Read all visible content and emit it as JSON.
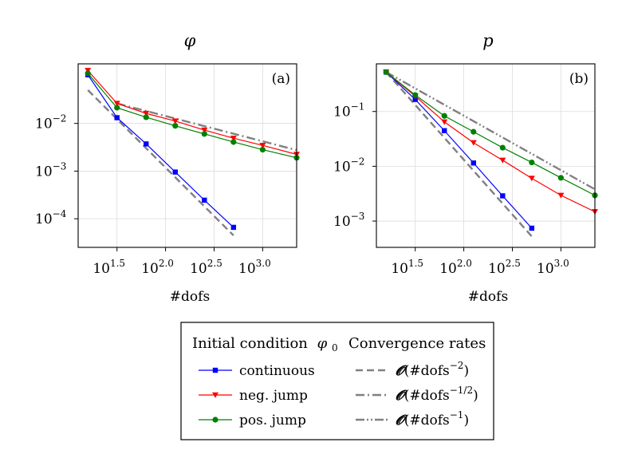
{
  "chart_data": [
    {
      "type": "line",
      "title": "φ",
      "panel_label": "(a)",
      "xlabel": "#dofs",
      "ylabel": "",
      "xscale": "log10",
      "yscale": "log10",
      "xlim_log10": [
        1.1,
        3.35
      ],
      "ylim_log10": [
        -4.6,
        -0.75
      ],
      "xticks": [
        {
          "value": 1.5,
          "base": "10",
          "exp": "1.5"
        },
        {
          "value": 2.0,
          "base": "10",
          "exp": "2.0"
        },
        {
          "value": 2.5,
          "base": "10",
          "exp": "2.5"
        },
        {
          "value": 3.0,
          "base": "10",
          "exp": "3.0"
        }
      ],
      "yticks": [
        {
          "value": -2,
          "base": "10",
          "exp": "−2"
        },
        {
          "value": -3,
          "base": "10",
          "exp": "−3"
        },
        {
          "value": -4,
          "base": "10",
          "exp": "−4"
        }
      ],
      "grid": true,
      "series": [
        {
          "name": "continuous",
          "color": "#0000ff",
          "marker": "square",
          "x": [
            1.2,
            1.5,
            1.8,
            2.1,
            2.4,
            2.7
          ],
          "y": [
            -0.98,
            -1.88,
            -2.43,
            -3.02,
            -3.61,
            -4.18
          ]
        },
        {
          "name": "neg. jump",
          "color": "#ff0000",
          "marker": "triangle-down",
          "x": [
            1.2,
            1.5,
            1.8,
            2.1,
            2.4,
            2.7,
            3.0,
            3.35
          ],
          "y": [
            -0.89,
            -1.58,
            -1.79,
            -1.95,
            -2.14,
            -2.31,
            -2.46,
            -2.65
          ]
        },
        {
          "name": "pos. jump",
          "color": "#008000",
          "marker": "circle",
          "x": [
            1.2,
            1.5,
            1.8,
            2.1,
            2.4,
            2.7,
            3.0,
            3.35
          ],
          "y": [
            -0.95,
            -1.67,
            -1.87,
            -2.05,
            -2.22,
            -2.39,
            -2.55,
            -2.72
          ]
        }
      ],
      "reference_lines": [
        {
          "name": "O(#dofs^-2)",
          "style": "dash",
          "x": [
            1.2,
            2.7
          ],
          "y": [
            -1.3,
            -4.35
          ]
        },
        {
          "name": "O(#dofs^-1/2)",
          "style": "dashdot",
          "x": [
            1.5,
            3.35
          ],
          "y": [
            -1.58,
            -2.56
          ]
        }
      ]
    },
    {
      "type": "line",
      "title": "p",
      "panel_label": "(b)",
      "xlabel": "#dofs",
      "ylabel": "",
      "xscale": "log10",
      "yscale": "log10",
      "xlim_log10": [
        1.1,
        3.35
      ],
      "ylim_log10": [
        -3.48,
        -0.13
      ],
      "xticks": [
        {
          "value": 1.5,
          "base": "10",
          "exp": "1.5"
        },
        {
          "value": 2.0,
          "base": "10",
          "exp": "2.0"
        },
        {
          "value": 2.5,
          "base": "10",
          "exp": "2.5"
        },
        {
          "value": 3.0,
          "base": "10",
          "exp": "3.0"
        }
      ],
      "yticks": [
        {
          "value": -1,
          "base": "10",
          "exp": "−1"
        },
        {
          "value": -2,
          "base": "10",
          "exp": "−2"
        },
        {
          "value": -3,
          "base": "10",
          "exp": "−3"
        }
      ],
      "grid": true,
      "series": [
        {
          "name": "continuous",
          "color": "#0000ff",
          "marker": "square",
          "x": [
            1.2,
            1.5,
            1.8,
            2.1,
            2.4,
            2.7
          ],
          "y": [
            -0.28,
            -0.78,
            -1.35,
            -1.94,
            -2.54,
            -3.13
          ]
        },
        {
          "name": "neg. jump",
          "color": "#ff0000",
          "marker": "triangle-down",
          "x": [
            1.2,
            1.5,
            1.8,
            2.1,
            2.4,
            2.7,
            3.0,
            3.35
          ],
          "y": [
            -0.28,
            -0.72,
            -1.19,
            -1.57,
            -1.89,
            -2.22,
            -2.53,
            -2.83
          ]
        },
        {
          "name": "pos. jump",
          "color": "#008000",
          "marker": "circle",
          "x": [
            1.2,
            1.5,
            1.8,
            2.1,
            2.4,
            2.7,
            3.0,
            3.35
          ],
          "y": [
            -0.28,
            -0.7,
            -1.08,
            -1.37,
            -1.66,
            -1.93,
            -2.21,
            -2.53
          ]
        }
      ],
      "reference_lines": [
        {
          "name": "O(#dofs^-2)",
          "style": "dash",
          "x": [
            1.2,
            2.7
          ],
          "y": [
            -0.28,
            -3.28
          ]
        },
        {
          "name": "O(#dofs^-1)",
          "style": "dashdotdot",
          "x": [
            1.2,
            3.35
          ],
          "y": [
            -0.28,
            -2.42
          ]
        }
      ]
    }
  ],
  "legend": {
    "left_title_text": "Initial condition",
    "left_title_symbol": "φ",
    "left_title_subscript": "0",
    "right_title": "Convergence rates",
    "entries_left": [
      {
        "label": "continuous",
        "color": "#0000ff",
        "marker": "square"
      },
      {
        "label": "neg. jump",
        "color": "#ff0000",
        "marker": "triangle-down"
      },
      {
        "label": "pos. jump",
        "color": "#008000",
        "marker": "circle"
      }
    ],
    "entries_right": [
      {
        "style": "dash",
        "O": "𝓞",
        "open": "(#dofs",
        "sup": "−2",
        "close": ")"
      },
      {
        "style": "dashdot",
        "O": "𝓞",
        "open": "(#dofs",
        "sup": "−1/2",
        "close": ")"
      },
      {
        "style": "dashdotdot",
        "O": "𝓞",
        "open": "(#dofs",
        "sup": "−1",
        "close": ")"
      }
    ]
  }
}
